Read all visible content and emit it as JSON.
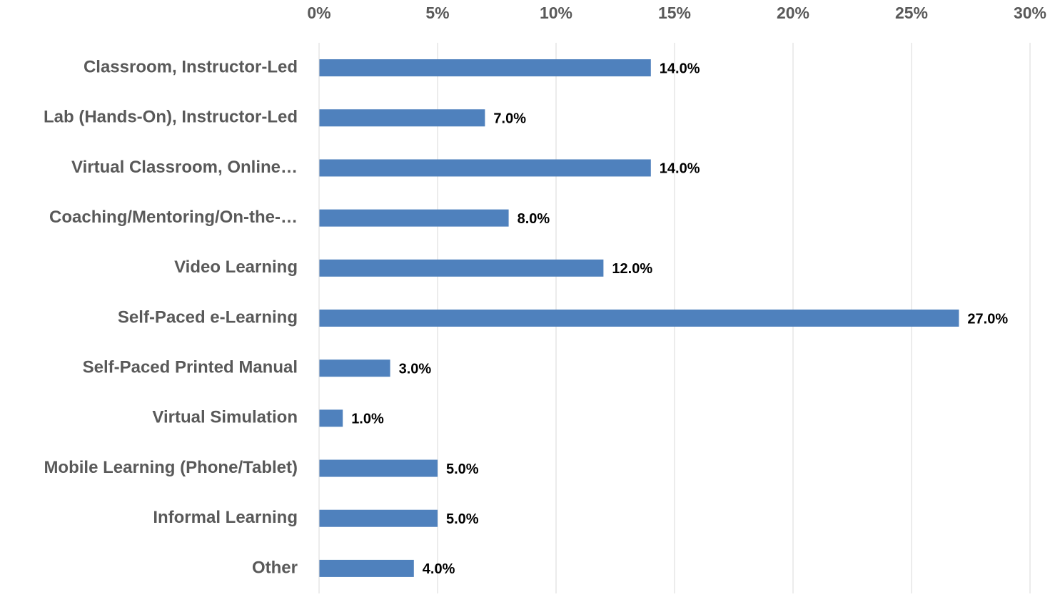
{
  "chart_data": {
    "type": "bar",
    "orientation": "horizontal",
    "categories": [
      "Classroom, Instructor-Led",
      "Lab (Hands-On), Instructor-Led",
      "Virtual Classroom, Online…",
      "Coaching/Mentoring/On-the-…",
      "Video Learning",
      "Self-Paced e-Learning",
      "Self-Paced Printed Manual",
      "Virtual Simulation",
      "Mobile Learning (Phone/Tablet)",
      "Informal Learning",
      "Other"
    ],
    "values": [
      14,
      7,
      14,
      8,
      12,
      27,
      3,
      1,
      5,
      5,
      4
    ],
    "value_labels": [
      "14.0%",
      "7.0%",
      "14.0%",
      "8.0%",
      "12.0%",
      "27.0%",
      "3.0%",
      "1.0%",
      "5.0%",
      "5.0%",
      "4.0%"
    ],
    "color": "#4f81bd",
    "xlim": [
      0,
      30
    ],
    "xticks": [
      {
        "value": 0,
        "label": "0%"
      },
      {
        "value": 5,
        "label": "5%"
      },
      {
        "value": 10,
        "label": "10%"
      },
      {
        "value": 15,
        "label": "15%"
      },
      {
        "value": 20,
        "label": "20%"
      },
      {
        "value": 25,
        "label": "25%"
      },
      {
        "value": 30,
        "label": "30%"
      }
    ],
    "grid": true
  }
}
